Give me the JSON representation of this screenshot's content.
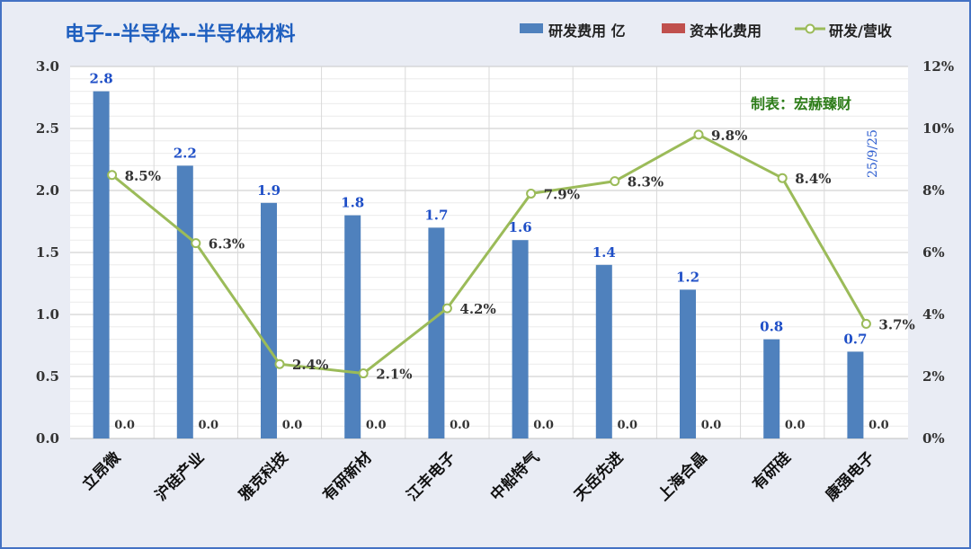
{
  "chart_data": {
    "type": "bar",
    "title": "电子--半导体--半导体材料",
    "categories": [
      "立昂微",
      "沪硅产业",
      "雅克科技",
      "有研新材",
      "江丰电子",
      "中船特气",
      "天岳先进",
      "上海合晶",
      "有研硅",
      "康强电子"
    ],
    "series": [
      {
        "name": "研发费用 亿",
        "type": "bar",
        "axis": "left",
        "color": "#4f81bd",
        "values": [
          2.8,
          2.2,
          1.9,
          1.8,
          1.7,
          1.6,
          1.4,
          1.2,
          0.8,
          0.7
        ]
      },
      {
        "name": "资本化费用",
        "type": "bar",
        "axis": "left",
        "color": "#c0504d",
        "values": [
          0.0,
          0.0,
          0.0,
          0.0,
          0.0,
          0.0,
          0.0,
          0.0,
          0.0,
          0.0
        ]
      },
      {
        "name": "研发/营收",
        "type": "line",
        "axis": "right",
        "color": "#9bbb59",
        "values": [
          8.5,
          6.3,
          2.4,
          2.1,
          4.2,
          7.9,
          8.3,
          9.8,
          8.4,
          3.7
        ]
      }
    ],
    "bar_value_labels": [
      "2.8",
      "2.2",
      "1.9",
      "1.8",
      "1.7",
      "1.6",
      "1.4",
      "1.2",
      "0.8",
      "0.7"
    ],
    "cap_value_labels": [
      "0.0",
      "0.0",
      "0.0",
      "0.0",
      "0.0",
      "0.0",
      "0.0",
      "0.0",
      "0.0",
      "0.0"
    ],
    "line_value_labels": [
      "8.5%",
      "6.3%",
      "2.4%",
      "2.1%",
      "4.2%",
      "7.9%",
      "8.3%",
      "9.8%",
      "8.4%",
      "3.7%"
    ],
    "ylim": [
      0,
      3.0
    ],
    "y2lim": [
      0,
      12
    ],
    "y_ticks": [
      "0.0",
      "0.5",
      "1.0",
      "1.5",
      "2.0",
      "2.5",
      "3.0"
    ],
    "y2_ticks": [
      "0%",
      "2%",
      "4%",
      "6%",
      "8%",
      "10%",
      "12%"
    ],
    "legend_position": "top-right",
    "grid": true
  },
  "annotations": {
    "credit": "制表：宏赫臻财",
    "date": "25/9/25"
  }
}
